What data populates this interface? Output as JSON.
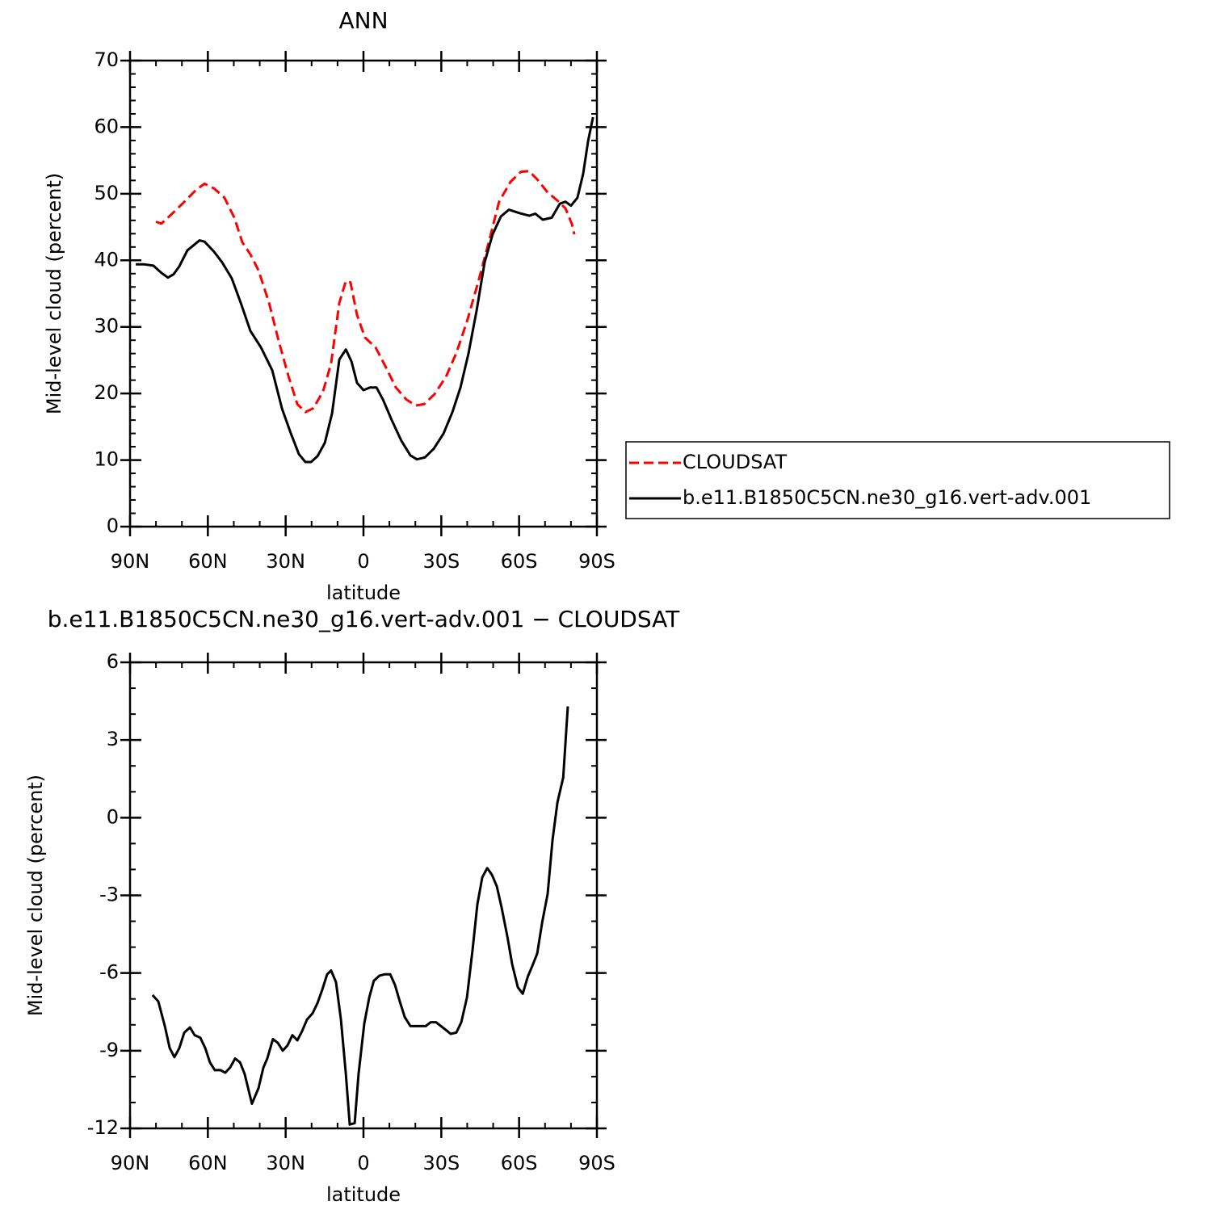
{
  "chart_data": [
    {
      "type": "line",
      "title": "ANN",
      "x_label": "latitude",
      "y_label": "Mid-level cloud (percent)",
      "xlim": [
        90,
        -90
      ],
      "xticks": [
        {
          "value": 90,
          "label": "90N"
        },
        {
          "value": 60,
          "label": "60N"
        },
        {
          "value": 30,
          "label": "30N"
        },
        0,
        {
          "value": -30,
          "label": "30S"
        },
        {
          "value": -60,
          "label": "60S"
        },
        {
          "value": -90,
          "label": "90S"
        }
      ],
      "ylim": [
        0,
        70
      ],
      "yticks": [
        0,
        10,
        20,
        30,
        40,
        50,
        60,
        70
      ],
      "legend": "right",
      "series": [
        {
          "name": "CLOUDSAT",
          "color": "#ff0000",
          "line_style": "dashed",
          "x": [
            80,
            77.9,
            73.2,
            68.5,
            64.5,
            61.3,
            57.6,
            53.6,
            49.8,
            46.7,
            43.6,
            40.5,
            36.4,
            32.7,
            29,
            25.5,
            22.4,
            19.3,
            15.6,
            12.5,
            9.3,
            6.8,
            5,
            2.5,
            -0.6,
            -4.7,
            -8.7,
            -12.5,
            -16.5,
            -20.2,
            -23.4,
            -27.4,
            -31.8,
            -35.8,
            -39.9,
            -44.2,
            -48.3,
            -52.3,
            -56.7,
            -60.7,
            -63.8,
            -66.9,
            -71,
            -74.7,
            -77.9,
            -80.4,
            -81.3
          ],
          "values": [
            45.8,
            45.5,
            47.2,
            49.0,
            50.6,
            51.5,
            50.8,
            49.4,
            46.4,
            42.7,
            40.9,
            38.5,
            33.6,
            27.9,
            22.7,
            18.4,
            17.2,
            17.8,
            20.3,
            24.5,
            33.6,
            36.9,
            36.7,
            31.8,
            28.4,
            26.9,
            23.9,
            20.9,
            19.1,
            18.2,
            18.4,
            19.9,
            22.5,
            26.1,
            30.8,
            36.7,
            42.7,
            48.8,
            51.8,
            53.3,
            53.4,
            52.2,
            50.2,
            49.0,
            47.8,
            45.4,
            43.9
          ]
        },
        {
          "name": "b.e11.B1850C5CN.ne30_g16.vert-adv.001",
          "color": "#000000",
          "line_style": "solid",
          "x": [
            87.8,
            84.7,
            81,
            77.9,
            75.4,
            73.2,
            71,
            67.9,
            63.2,
            61.3,
            57.6,
            54.5,
            50.8,
            47.3,
            43.6,
            39.5,
            35.2,
            31.4,
            28,
            24.9,
            22.4,
            20.2,
            17.7,
            14.9,
            12.1,
            9.3,
            6.8,
            4.6,
            2.5,
            0,
            -2.5,
            -5,
            -7.5,
            -10.9,
            -14.6,
            -18.1,
            -20.6,
            -23.7,
            -27.1,
            -30.9,
            -34.3,
            -37.4,
            -40.5,
            -43.6,
            -46.7,
            -49.8,
            -53,
            -56.1,
            -60.1,
            -63.9,
            -66.3,
            -69.1,
            -72.6,
            -75.7,
            -77.9,
            -80,
            -82.5,
            -84.7,
            -86.6,
            -88.5
          ],
          "values": [
            39.4,
            39.4,
            39.2,
            38.1,
            37.4,
            37.9,
            39.1,
            41.5,
            43.0,
            42.8,
            41.3,
            39.7,
            37.3,
            33.6,
            29.4,
            26.9,
            23.5,
            17.7,
            14.0,
            10.9,
            9.7,
            9.7,
            10.6,
            12.6,
            17.0,
            25.1,
            26.6,
            24.8,
            21.6,
            20.5,
            20.9,
            20.9,
            19.1,
            16.0,
            12.9,
            10.7,
            10.1,
            10.4,
            11.7,
            14.0,
            17.2,
            20.9,
            26.0,
            32.4,
            39.7,
            43.9,
            46.6,
            47.6,
            47.1,
            46.7,
            47.0,
            46.1,
            46.4,
            48.5,
            48.8,
            48.2,
            49.4,
            53.0,
            57.9,
            61.5
          ]
        }
      ]
    },
    {
      "type": "line",
      "title": "b.e11.B1850C5CN.ne30_g16.vert-adv.001 − CLOUDSAT",
      "x_label": "latitude",
      "y_label": "Mid-level cloud (percent)",
      "xlim": [
        90,
        -90
      ],
      "xticks": [
        {
          "value": 90,
          "label": "90N"
        },
        {
          "value": 60,
          "label": "60N"
        },
        {
          "value": 30,
          "label": "30N"
        },
        0,
        {
          "value": -30,
          "label": "30S"
        },
        {
          "value": -60,
          "label": "60S"
        },
        {
          "value": -90,
          "label": "90S"
        }
      ],
      "ylim": [
        -12,
        6
      ],
      "yticks": [
        -12,
        -9,
        -6,
        -3,
        0,
        3,
        6
      ],
      "color": "#000000",
      "x": [
        81.3,
        79.1,
        76.6,
        74.7,
        72.9,
        71,
        69.1,
        66.9,
        65.1,
        62.9,
        61,
        59.2,
        57.3,
        55.1,
        53.3,
        51.4,
        49.5,
        47.6,
        45.8,
        43,
        40.5,
        38.6,
        37.1,
        34.9,
        33,
        31.1,
        29.3,
        27.4,
        25.5,
        23.7,
        21.8,
        19.6,
        17.7,
        15.9,
        14,
        12.5,
        10.6,
        8.7,
        6.8,
        5.3,
        3.4,
        1.9,
        -0.3,
        -2.2,
        -4,
        -6.2,
        -8.1,
        -10.3,
        -12.1,
        -14,
        -15.9,
        -18.1,
        -19.9,
        -22.1,
        -24,
        -25.9,
        -28,
        -29.9,
        -31.8,
        -33.6,
        -35.8,
        -37.7,
        -39.9,
        -42,
        -43.9,
        -45.8,
        -47.7,
        -49.5,
        -51.4,
        -53.3,
        -55.5,
        -57.3,
        -59.5,
        -61.4,
        -63.3,
        -65.4,
        -67,
        -68.9,
        -71,
        -72.9,
        -74.8,
        -77,
        -78.8
      ],
      "values": [
        -6.85,
        -7.1,
        -8.04,
        -8.9,
        -9.25,
        -8.9,
        -8.3,
        -8.1,
        -8.4,
        -8.5,
        -8.9,
        -9.45,
        -9.75,
        -9.75,
        -9.85,
        -9.65,
        -9.3,
        -9.45,
        -9.9,
        -11.05,
        -10.45,
        -9.65,
        -9.3,
        -8.55,
        -8.7,
        -9.0,
        -8.8,
        -8.4,
        -8.6,
        -8.25,
        -7.8,
        -7.55,
        -7.15,
        -6.65,
        -6.05,
        -5.9,
        -6.35,
        -7.8,
        -9.9,
        -11.85,
        -11.8,
        -9.9,
        -7.95,
        -6.95,
        -6.3,
        -6.1,
        -6.05,
        -6.05,
        -6.45,
        -7.1,
        -7.7,
        -8.05,
        -8.05,
        -8.05,
        -8.05,
        -7.9,
        -7.9,
        -8.05,
        -8.2,
        -8.35,
        -8.3,
        -7.9,
        -6.95,
        -5.15,
        -3.35,
        -2.3,
        -1.95,
        -2.2,
        -2.65,
        -3.5,
        -4.6,
        -5.65,
        -6.55,
        -6.8,
        -6.15,
        -5.65,
        -5.25,
        -4.05,
        -2.95,
        -0.85,
        0.6,
        1.55,
        4.3
      ]
    }
  ]
}
